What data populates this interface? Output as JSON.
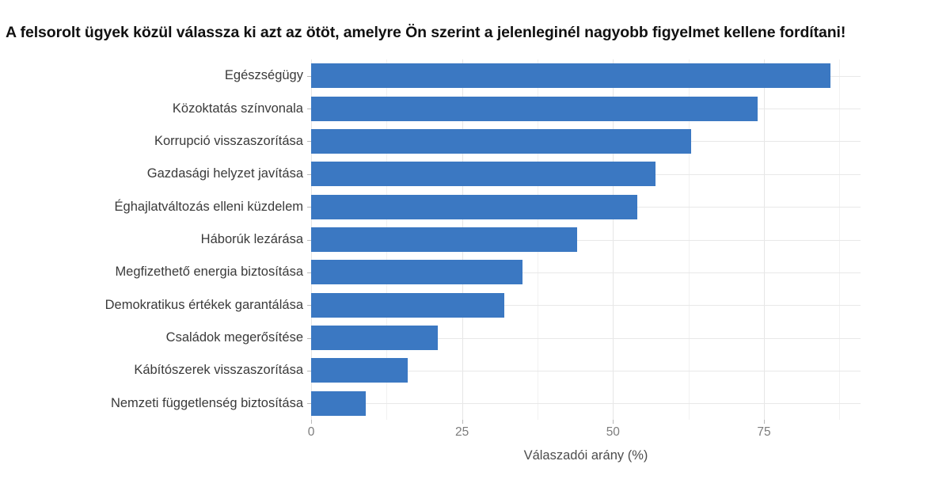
{
  "title": "A felsorolt ügyek közül válassza ki azt az ötöt, amelyre Ön szerint a jelenleginél nagyobb figyelmet kellene fordítani!",
  "chart_data": {
    "type": "bar",
    "orientation": "horizontal",
    "title": "A felsorolt ügyek közül válassza ki azt az ötöt, amelyre Ön szerint a jelenleginél nagyobb figyelmet kellene fordítani!",
    "categories": [
      "Egészségügy",
      "Közoktatás színvonala",
      "Korrupció visszaszorítása",
      "Gazdasági helyzet javítása",
      "Éghajlatváltozás elleni küzdelem",
      "Háborúk lezárása",
      "Megfizethető energia biztosítása",
      "Demokratikus értékek garantálása",
      "Családok megerősítése",
      "Kábítószerek visszaszorítása",
      "Nemzeti függetlenség biztosítása"
    ],
    "values": [
      86,
      74,
      63,
      57,
      54,
      44,
      35,
      32,
      21,
      16,
      9
    ],
    "xlabel": "Válaszadói arány (%)",
    "ylabel": "",
    "x_ticks": [
      0,
      25,
      50,
      75
    ],
    "x_tick_labels": [
      "0",
      "25",
      "50",
      "75"
    ],
    "x_minor_ticks": [
      12.5,
      37.5,
      62.5,
      87.5
    ],
    "xlim": [
      0,
      91
    ],
    "grid": "on",
    "legend": "none",
    "bar_color": "#3b78c2",
    "major_grid_color": "#e6e6e6",
    "minor_grid_color": "#f1f1f1",
    "background_color": "#ffffff"
  }
}
